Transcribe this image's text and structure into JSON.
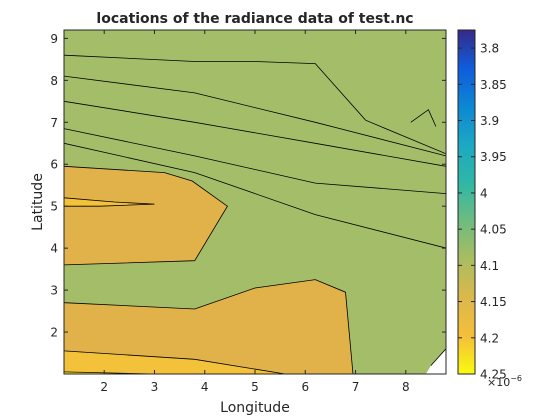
{
  "chart_data": {
    "type": "contour",
    "title": "locations of the radiance data of test.nc",
    "xlabel": "Longitude",
    "ylabel": "Latitude",
    "xlim": [
      1.2,
      8.8
    ],
    "ylim": [
      1.0,
      9.2
    ],
    "x_ticks": [
      2,
      3,
      4,
      5,
      6,
      7,
      8
    ],
    "y_ticks": [
      2,
      3,
      4,
      5,
      6,
      7,
      8,
      9
    ],
    "grid": false,
    "colorbar": {
      "placement": "right",
      "reversed": true,
      "min": 3.775,
      "max": 4.25,
      "ticks": [
        3.8,
        3.85,
        3.9,
        3.95,
        4,
        4.05,
        4.1,
        4.15,
        4.2,
        4.25
      ],
      "tick_labels": [
        "3.8",
        "3.85",
        "3.9",
        "3.95",
        "4",
        "4.05",
        "4.1",
        "4.15",
        "4.2",
        "4.25"
      ],
      "exponent_base": "×10",
      "exponent": "−6"
    },
    "levels": [
      {
        "value": 3.8,
        "color": "#2e2f93",
        "polygon": [
          [
            1.2,
            9.2
          ],
          [
            8.8,
            9.2
          ],
          [
            8.8,
            7.6
          ],
          [
            8.65,
            7.0
          ],
          [
            8.6,
            6.9
          ],
          [
            8.45,
            7.3
          ],
          [
            8.1,
            7.0
          ],
          [
            7.2,
            7.05
          ],
          [
            6.2,
            8.4
          ],
          [
            5.0,
            8.45
          ],
          [
            3.8,
            8.45
          ],
          [
            1.2,
            8.6
          ]
        ]
      },
      {
        "value": 3.85,
        "color": "#1465d6",
        "polygon": [
          [
            1.2,
            9.2
          ],
          [
            8.8,
            9.2
          ],
          [
            8.8,
            6.25
          ],
          [
            7.2,
            7.05
          ],
          [
            6.2,
            8.4
          ],
          [
            5.0,
            8.45
          ],
          [
            3.8,
            8.45
          ],
          [
            1.2,
            8.6
          ]
        ]
      },
      {
        "value": 3.9,
        "color": "#0a8bd6",
        "polygon": [
          [
            1.2,
            9.2
          ],
          [
            8.8,
            9.2
          ],
          [
            8.8,
            6.25
          ],
          [
            6.2,
            7.0
          ],
          [
            3.8,
            7.7
          ],
          [
            1.2,
            8.1
          ]
        ]
      },
      {
        "value": 3.95,
        "color": "#1ea5c7",
        "polygon": [
          [
            1.2,
            9.2
          ],
          [
            8.8,
            9.2
          ],
          [
            8.8,
            5.95
          ],
          [
            6.2,
            6.5
          ],
          [
            3.8,
            7.0
          ],
          [
            1.2,
            7.5
          ]
        ]
      },
      {
        "value": 4.0,
        "color": "#31b2a8",
        "polygon": [
          [
            1.2,
            9.2
          ],
          [
            8.8,
            9.2
          ],
          [
            8.8,
            5.3
          ],
          [
            6.2,
            5.55
          ],
          [
            3.8,
            6.2
          ],
          [
            1.2,
            6.85
          ]
        ]
      },
      {
        "value": 4.05,
        "color": "#64bd7d",
        "polygon": [
          [
            1.2,
            9.2
          ],
          [
            8.8,
            9.2
          ],
          [
            8.8,
            4.0
          ],
          [
            6.2,
            4.8
          ],
          [
            3.8,
            5.8
          ],
          [
            1.2,
            6.5
          ]
        ]
      },
      {
        "value": 4.1,
        "color": "#a3bd69",
        "polygon": [
          [
            1.2,
            9.2
          ],
          [
            8.8,
            9.2
          ],
          [
            8.8,
            1.6
          ],
          [
            8.5,
            1.2
          ],
          [
            8.4,
            1.0
          ],
          [
            1.2,
            1.0
          ]
        ]
      },
      {
        "value": 4.15,
        "color": "#e2b24a",
        "polygon": [
          [
            1.2,
            5.95
          ],
          [
            3.2,
            5.8
          ],
          [
            3.75,
            5.6
          ],
          [
            4.45,
            5.0
          ],
          [
            3.8,
            3.7
          ],
          [
            1.2,
            3.6
          ]
        ]
      },
      {
        "value": 4.15,
        "color": "#e2b24a",
        "polygon": [
          [
            1.2,
            2.7
          ],
          [
            3.8,
            2.55
          ],
          [
            5.0,
            3.05
          ],
          [
            6.2,
            3.25
          ],
          [
            6.8,
            2.95
          ],
          [
            6.95,
            1.0
          ],
          [
            1.2,
            1.0
          ]
        ]
      },
      {
        "value": 4.2,
        "color": "#f3c23a",
        "polygon": [
          [
            1.2,
            1.55
          ],
          [
            3.8,
            1.35
          ],
          [
            5.6,
            1.0
          ],
          [
            1.2,
            1.0
          ]
        ]
      },
      {
        "value": 4.2,
        "color": "#f3c23a",
        "polygon": [
          [
            1.2,
            5.2
          ],
          [
            2.2,
            5.1
          ],
          [
            3.0,
            5.05
          ],
          [
            1.9,
            5.0
          ],
          [
            1.2,
            5.0
          ]
        ]
      },
      {
        "value": 4.25,
        "color": "#f8e02a",
        "polygon": [
          [
            1.2,
            1.05
          ],
          [
            3.0,
            1.0
          ],
          [
            1.2,
            1.0
          ]
        ]
      }
    ],
    "contour_lines": [
      [
        [
          1.2,
          8.6
        ],
        [
          3.8,
          8.45
        ],
        [
          5.0,
          8.45
        ],
        [
          6.2,
          8.4
        ],
        [
          7.2,
          7.05
        ],
        [
          8.8,
          6.25
        ]
      ],
      [
        [
          8.1,
          7.0
        ],
        [
          8.45,
          7.3
        ],
        [
          8.6,
          6.9
        ]
      ],
      [
        [
          1.2,
          8.1
        ],
        [
          3.8,
          7.7
        ],
        [
          6.2,
          7.0
        ],
        [
          8.8,
          6.2
        ]
      ],
      [
        [
          1.2,
          7.5
        ],
        [
          3.8,
          7.0
        ],
        [
          6.2,
          6.5
        ],
        [
          8.8,
          5.95
        ]
      ],
      [
        [
          1.2,
          6.85
        ],
        [
          3.8,
          6.2
        ],
        [
          6.2,
          5.55
        ],
        [
          8.8,
          5.3
        ]
      ],
      [
        [
          1.2,
          6.5
        ],
        [
          3.8,
          5.8
        ],
        [
          6.2,
          4.8
        ],
        [
          8.8,
          4.0
        ]
      ],
      [
        [
          1.2,
          5.95
        ],
        [
          3.2,
          5.8
        ],
        [
          3.75,
          5.6
        ],
        [
          4.45,
          5.0
        ],
        [
          3.8,
          3.7
        ],
        [
          1.2,
          3.6
        ]
      ],
      [
        [
          1.2,
          5.2
        ],
        [
          2.2,
          5.1
        ],
        [
          3.0,
          5.05
        ],
        [
          1.9,
          5.0
        ],
        [
          1.2,
          5.0
        ]
      ],
      [
        [
          1.2,
          2.7
        ],
        [
          3.8,
          2.55
        ],
        [
          5.0,
          3.05
        ],
        [
          6.2,
          3.25
        ],
        [
          6.8,
          2.95
        ],
        [
          6.95,
          1.0
        ]
      ],
      [
        [
          1.2,
          1.55
        ],
        [
          3.8,
          1.35
        ],
        [
          5.6,
          1.0
        ]
      ],
      [
        [
          8.5,
          1.2
        ],
        [
          8.8,
          1.6
        ]
      ],
      [
        [
          1.2,
          1.05
        ],
        [
          3.0,
          1.0
        ]
      ]
    ],
    "colormap": [
      "#352a87",
      "#0f5cdd",
      "#0d87d3",
      "#1ca8c3",
      "#2fb7a5",
      "#6ebc80",
      "#aabd5f",
      "#dcb84b",
      "#f4be3b",
      "#f9fb0e"
    ]
  }
}
